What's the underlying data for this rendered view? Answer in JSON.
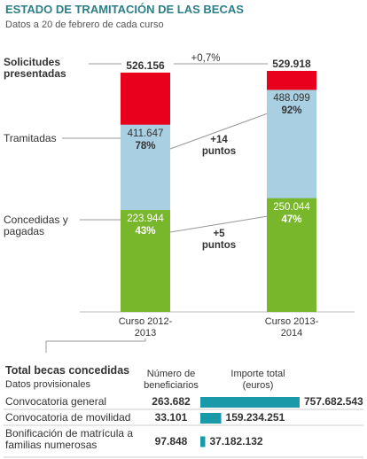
{
  "title": "ESTADO DE TRAMITACIÓN DE LAS BECAS",
  "subtitle": "Datos a 20 de febrero de cada curso",
  "chart_data": [
    {
      "type": "bar",
      "categories": [
        "Curso 2012-2013",
        "Curso 2013-2014"
      ],
      "series": [
        {
          "name": "Solicitudes presentadas",
          "color": "#e8001c",
          "values": [
            526156,
            529918
          ],
          "value_labels": [
            "526.156",
            "529.918"
          ]
        },
        {
          "name": "Tramitadas",
          "color": "#a9cfe3",
          "values": [
            411647,
            488099
          ],
          "value_labels": [
            "411.647",
            "488.099"
          ],
          "shares": [
            78,
            92
          ],
          "share_labels": [
            "78%",
            "92%"
          ]
        },
        {
          "name": "Concedidas y pagadas",
          "color": "#78b62b",
          "values": [
            223944,
            250044
          ],
          "value_labels": [
            "223.944",
            "250.044"
          ],
          "shares": [
            43,
            47
          ],
          "share_labels": [
            "43%",
            "47%"
          ]
        }
      ],
      "annotations": [
        "+0,7%",
        "+14 puntos",
        "+5 puntos"
      ]
    },
    {
      "type": "hbar",
      "title": "Total becas concedidas",
      "subtitle": "Datos provisionales",
      "columns": [
        "Número de beneficiarios",
        "Importe total (euros)"
      ],
      "categories": [
        "Convocatoria general",
        "Convocatoria de movilidad",
        "Bonificación de matrícula a familias numerosas"
      ],
      "beneficiaries": [
        "263.682",
        "33.101",
        "97.848"
      ],
      "color": "#1a9aa8",
      "values": [
        757682543,
        159234251,
        37182132
      ],
      "value_labels": [
        "757.682.543",
        "159.234.251",
        "37.182.132"
      ]
    }
  ]
}
